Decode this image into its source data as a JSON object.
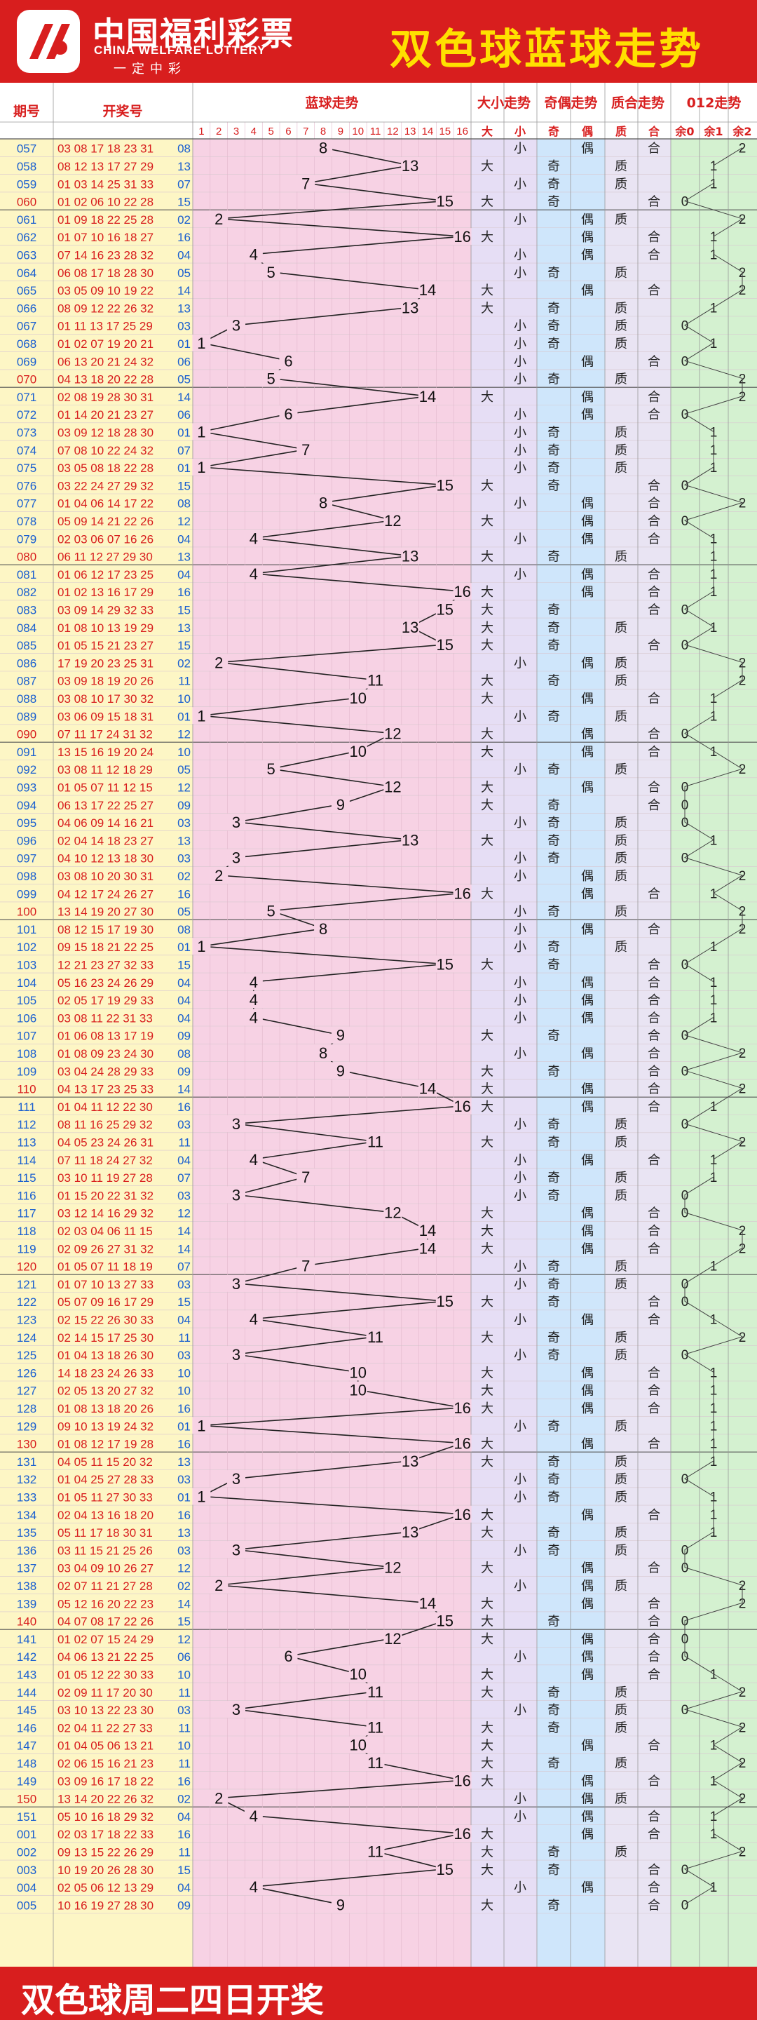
{
  "header": {
    "logo_cn": "中国福利彩票",
    "logo_en": "CHINA WELFARE LOTTERY",
    "logo_tag": "一定中彩",
    "title": "双色球蓝球走势"
  },
  "footer": {
    "text": "双色球周二四日开奖"
  },
  "columns": {
    "period": "期号",
    "numbers": "开奖号",
    "blue_trend": "蓝球走势",
    "size_trend": "大小走势",
    "parity_trend": "奇偶走势",
    "prime_trend": "质合走势",
    "mod3_trend": "012走势",
    "big": "大",
    "small": "小",
    "odd": "奇",
    "even": "偶",
    "prime": "质",
    "composite": "合",
    "mod0": "余0",
    "mod1": "余1",
    "mod2": "余2"
  },
  "colors": {
    "red_ball": "#d81e1e",
    "blue_ball": "#1a5fd0",
    "blue_zone": "#f7d2e4",
    "size_zone": "#e6def5",
    "parity_zone": "#cfe6fb",
    "prime_zone": "#e9e4f3",
    "mod_zone": "#d4f1d0",
    "left_zone": "#fdf6c5",
    "footer_bg": "#d81e1e"
  },
  "chart_data": {
    "type": "line",
    "title": "双色球蓝球走势",
    "x_label": "期号",
    "y_label": "蓝球",
    "blue_range": [
      1,
      16
    ],
    "periods": [
      "057",
      "058",
      "059",
      "060",
      "061",
      "062",
      "063",
      "064",
      "065",
      "066",
      "067",
      "068",
      "069",
      "070",
      "071",
      "072",
      "073",
      "074",
      "075",
      "076",
      "077",
      "078",
      "079",
      "080",
      "081",
      "082",
      "083",
      "084",
      "085",
      "086",
      "087",
      "088",
      "089",
      "090",
      "091",
      "092",
      "093",
      "094",
      "095",
      "096",
      "097",
      "098",
      "099",
      "100",
      "101",
      "102",
      "103",
      "104",
      "105",
      "106",
      "107",
      "108",
      "109",
      "110",
      "111",
      "112",
      "113",
      "114",
      "115",
      "116",
      "117",
      "118",
      "119",
      "120",
      "121",
      "122",
      "123",
      "124",
      "125",
      "126",
      "127",
      "128",
      "129",
      "130",
      "131",
      "132",
      "133",
      "134",
      "135",
      "136",
      "137",
      "138",
      "139",
      "140",
      "141",
      "142",
      "143",
      "144",
      "145",
      "146",
      "147",
      "148",
      "149",
      "150",
      "151",
      "001",
      "002",
      "003",
      "004",
      "005"
    ],
    "reds": [
      "03 08 17 18 23 31",
      "08 12 13 17 27 29",
      "01 03 14 25 31 33",
      "01 02 06 10 22 28",
      "01 09 18 22 25 28",
      "01 07 10 16 18 27",
      "07 14 16 23 28 32",
      "06 08 17 18 28 30",
      "03 05 09 10 19 22",
      "08 09 12 22 26 32",
      "01 11 13 17 25 29",
      "01 02 07 19 20 21",
      "06 13 20 21 24 32",
      "04 13 18 20 22 28",
      "02 08 19 28 30 31",
      "01 14 20 21 23 27",
      "03 09 12 18 28 30",
      "07 08 10 22 24 32",
      "03 05 08 18 22 28",
      "03 22 24 27 29 32",
      "01 04 06 14 17 22",
      "05 09 14 21 22 26",
      "02 03 06 07 16 26",
      "06 11 12 27 29 30",
      "01 06 12 17 23 25",
      "01 02 13 16 17 29",
      "03 09 14 29 32 33",
      "01 08 10 13 19 29",
      "01 05 15 21 23 27",
      "17 19 20 23 25 31",
      "03 09 18 19 20 26",
      "03 08 10 17 30 32",
      "03 06 09 15 18 31",
      "07 11 17 24 31 32",
      "13 15 16 19 20 24",
      "03 08 11 12 18 29",
      "01 05 07 11 12 15",
      "06 13 17 22 25 27",
      "04 06 09 14 16 21",
      "02 04 14 18 23 27",
      "04 10 12 13 18 30",
      "03 08 10 20 30 31",
      "04 12 17 24 26 27",
      "13 14 19 20 27 30",
      "08 12 15 17 19 30",
      "09 15 18 21 22 25",
      "12 21 23 27 32 33",
      "05 16 23 24 26 29",
      "02 05 17 19 29 33",
      "03 08 11 22 31 33",
      "01 06 08 13 17 19",
      "01 08 09 23 24 30",
      "03 04 24 28 29 33",
      "04 13 17 23 25 33",
      "01 04 11 12 22 30",
      "08 11 16 25 29 32",
      "04 05 23 24 26 31",
      "07 11 18 24 27 32",
      "03 10 11 19 27 28",
      "01 15 20 22 31 32",
      "03 12 14 16 29 32",
      "02 03 04 06 11 15",
      "02 09 26 27 31 32",
      "01 05 07 11 18 19",
      "01 07 10 13 27 33",
      "05 07 09 16 17 29",
      "02 15 22 26 30 33",
      "02 14 15 17 25 30",
      "01 04 13 18 26 30",
      "14 18 23 24 26 33",
      "02 05 13 20 27 32",
      "01 08 13 18 20 26",
      "09 10 13 19 24 32",
      "01 08 12 17 19 28",
      "04 05 11 15 20 32",
      "01 04 25 27 28 33",
      "01 05 11 27 30 33",
      "02 04 13 16 18 20",
      "05 11 17 18 30 31",
      "03 11 15 21 25 26",
      "03 04 09 10 26 27",
      "02 07 11 21 27 28",
      "05 12 16 20 22 23",
      "04 07 08 17 22 26",
      "01 02 07 15 24 29",
      "04 06 13 21 22 25",
      "01 05 12 22 30 33",
      "02 09 11 17 20 30",
      "03 10 13 22 23 30",
      "02 04 11 22 27 33",
      "01 04 05 06 13 21",
      "02 06 15 16 21 23",
      "03 09 16 17 18 22",
      "13 14 20 22 26 32",
      "05 10 16 18 29 32",
      "02 03 17 18 22 33",
      "09 13 15 22 26 29",
      "10 19 20 26 28 30",
      "02 05 06 12 13 29",
      "10 16 19 27 28 30"
    ],
    "blue": [
      8,
      13,
      7,
      15,
      2,
      16,
      4,
      5,
      14,
      13,
      3,
      1,
      6,
      5,
      14,
      6,
      1,
      7,
      1,
      15,
      8,
      12,
      4,
      13,
      4,
      16,
      15,
      13,
      15,
      2,
      11,
      10,
      1,
      12,
      10,
      5,
      12,
      9,
      3,
      13,
      3,
      2,
      16,
      5,
      8,
      1,
      15,
      4,
      4,
      4,
      9,
      8,
      9,
      14,
      16,
      3,
      11,
      4,
      7,
      3,
      12,
      14,
      14,
      7,
      3,
      15,
      4,
      11,
      3,
      10,
      10,
      16,
      1,
      16,
      13,
      3,
      1,
      16,
      13,
      3,
      12,
      2,
      14,
      15,
      12,
      6,
      10,
      11,
      3,
      11,
      10,
      11,
      16,
      2,
      4,
      16,
      11,
      15,
      4,
      9
    ],
    "size": [
      "",
      "",
      "",
      "",
      "",
      "大",
      "",
      "",
      "大",
      "",
      "",
      "",
      "",
      "",
      "大",
      "",
      "",
      "",
      "",
      "大",
      "",
      "",
      "",
      "",
      "",
      "大",
      "大",
      "大",
      "大",
      "",
      "",
      "",
      "",
      "",
      "大",
      "",
      "大",
      "",
      "",
      "",
      "",
      "",
      "大",
      "",
      "",
      "",
      "大",
      "",
      "",
      "",
      "大",
      "",
      "大",
      "",
      "",
      "",
      "",
      "",
      "",
      "",
      "大",
      "大",
      "大",
      "",
      "",
      "大",
      "",
      "",
      "",
      "大",
      "大",
      "大",
      "",
      "大",
      "",
      "",
      "",
      "大",
      "",
      "",
      "",
      "",
      "大",
      "大",
      "",
      "",
      "",
      "",
      "",
      "",
      "",
      "",
      "",
      "大",
      "",
      "大",
      "",
      "大",
      "大",
      "大",
      "大",
      "大"
    ],
    "parity": []
  }
}
